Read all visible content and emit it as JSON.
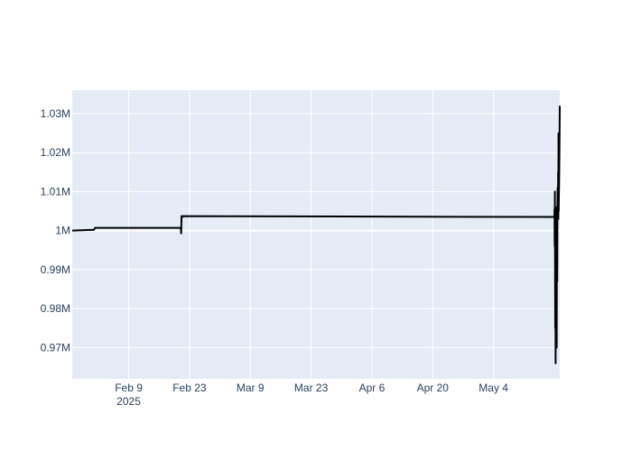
{
  "chart_data": {
    "type": "line",
    "title": "",
    "xlabel": "",
    "ylabel": "",
    "grid": true,
    "colors": {
      "plot_bg": "#e5ecf6",
      "grid": "#ffffff",
      "line": "#000000",
      "tick_text": "#2a3f5f"
    },
    "x_range": [
      "2025-01-27",
      "2025-05-19T06:00"
    ],
    "ylim": [
      962000,
      1036000
    ],
    "x_ticks": [
      {
        "date": "2025-02-09",
        "label": "Feb 9",
        "sublabel": "2025"
      },
      {
        "date": "2025-02-23",
        "label": "Feb 23"
      },
      {
        "date": "2025-03-09",
        "label": "Mar 9"
      },
      {
        "date": "2025-03-23",
        "label": "Mar 23"
      },
      {
        "date": "2025-04-06",
        "label": "Apr 6"
      },
      {
        "date": "2025-04-20",
        "label": "Apr 20"
      },
      {
        "date": "2025-05-04",
        "label": "May 4"
      }
    ],
    "y_ticks": [
      {
        "value": 970000,
        "label": "0.97M"
      },
      {
        "value": 980000,
        "label": "0.98M"
      },
      {
        "value": 990000,
        "label": "0.99M"
      },
      {
        "value": 1000000,
        "label": "1M"
      },
      {
        "value": 1010000,
        "label": "1.01M"
      },
      {
        "value": 1020000,
        "label": "1.02M"
      },
      {
        "value": 1030000,
        "label": "1.03M"
      }
    ],
    "series": [
      {
        "x": [
          "2025-01-27",
          "2025-02-01",
          "2025-02-01T06:00",
          "2025-02-21",
          "2025-02-21T02:00",
          "2025-02-21T04:00",
          "2025-02-21T06:00",
          "2025-02-21T08:00",
          "2025-02-21T10:00",
          "2025-05-18",
          "2025-05-18T01:00",
          "2025-05-18T02:00",
          "2025-05-18T03:00",
          "2025-05-18T04:00",
          "2025-05-18T05:00",
          "2025-05-18T06:00",
          "2025-05-18T07:00",
          "2025-05-18T08:00",
          "2025-05-18T09:00",
          "2025-05-18T10:00",
          "2025-05-18T11:00",
          "2025-05-18T12:00",
          "2025-05-18T13:00",
          "2025-05-18T14:00",
          "2025-05-18T15:00",
          "2025-05-18T16:00",
          "2025-05-18T17:00",
          "2025-05-18T18:00",
          "2025-05-18T19:00",
          "2025-05-18T20:00",
          "2025-05-18T21:00",
          "2025-05-18T22:00",
          "2025-05-18T23:00",
          "2025-05-19",
          "2025-05-19T01:00",
          "2025-05-19T02:00",
          "2025-05-19T03:00",
          "2025-05-19T04:00",
          "2025-05-19T05:00",
          "2025-05-19T06:00"
        ],
        "y": [
          1000000,
          1000200,
          1000700,
          1000700,
          999300,
          1003700,
          1003300,
          1003700,
          1003700,
          1003500,
          1005500,
          996000,
          1010000,
          990000,
          975000,
          1000000,
          966000,
          993000,
          970000,
          1004000,
          988000,
          1006000,
          970000,
          1000000,
          1005000,
          987000,
          1003000,
          1011000,
          1006000,
          1004000,
          1015000,
          1003000,
          1025000,
          1005000,
          1009000,
          1011000,
          1015000,
          1020000,
          1025000,
          1032000
        ]
      }
    ]
  }
}
